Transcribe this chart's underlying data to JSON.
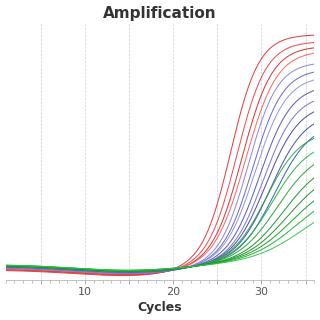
{
  "title": "Amplification",
  "xlabel": "Cycles",
  "xlim": [
    1,
    36
  ],
  "ylim": [
    -0.08,
    1.05
  ],
  "xticks_major": [
    5,
    10,
    15,
    20,
    25,
    30,
    35
  ],
  "xtick_labels": [
    "",
    "10",
    "",
    "20",
    "",
    "30",
    ""
  ],
  "background_color": "#ffffff",
  "plot_bg_color": "#ffffff",
  "grid_color": "#bbbbbb",
  "title_fontsize": 11,
  "xlabel_fontsize": 9,
  "curves": [
    {
      "color": "#e03030",
      "mid": 26.5,
      "k": 0.62,
      "ymax": 1.0,
      "ymin": -0.035
    },
    {
      "color": "#e84040",
      "mid": 27.2,
      "k": 0.6,
      "ymax": 0.97,
      "ymin": -0.032
    },
    {
      "color": "#d02828",
      "mid": 27.8,
      "k": 0.58,
      "ymax": 0.95,
      "ymin": -0.03
    },
    {
      "color": "#f06060",
      "mid": 28.2,
      "k": 0.56,
      "ymax": 0.93,
      "ymin": -0.028
    },
    {
      "color": "#8080e0",
      "mid": 28.5,
      "k": 0.6,
      "ymax": 0.88,
      "ymin": -0.025
    },
    {
      "color": "#6060cc",
      "mid": 29.0,
      "k": 0.58,
      "ymax": 0.85,
      "ymin": -0.023
    },
    {
      "color": "#9090dd",
      "mid": 29.3,
      "k": 0.56,
      "ymax": 0.82,
      "ymin": -0.022
    },
    {
      "color": "#5050bb",
      "mid": 29.8,
      "k": 0.55,
      "ymax": 0.78,
      "ymin": -0.02
    },
    {
      "color": "#7070cc",
      "mid": 30.2,
      "k": 0.54,
      "ymax": 0.74,
      "ymin": -0.019
    },
    {
      "color": "#4040aa",
      "mid": 30.5,
      "k": 0.52,
      "ymax": 0.7,
      "ymin": -0.018
    },
    {
      "color": "#3050a0",
      "mid": 31.0,
      "k": 0.5,
      "ymax": 0.66,
      "ymin": -0.016
    },
    {
      "color": "#2060a0",
      "mid": 31.5,
      "k": 0.48,
      "ymax": 0.62,
      "ymin": -0.015
    },
    {
      "color": "#30a040",
      "mid": 30.5,
      "k": 0.5,
      "ymax": 0.58,
      "ymin": -0.018
    },
    {
      "color": "#28b038",
      "mid": 31.2,
      "k": 0.46,
      "ymax": 0.54,
      "ymin": -0.016
    },
    {
      "color": "#20a030",
      "mid": 31.8,
      "k": 0.44,
      "ymax": 0.5,
      "ymin": -0.015
    },
    {
      "color": "#189028",
      "mid": 32.5,
      "k": 0.42,
      "ymax": 0.46,
      "ymin": -0.014
    },
    {
      "color": "#208828",
      "mid": 33.0,
      "k": 0.4,
      "ymax": 0.42,
      "ymin": -0.013
    },
    {
      "color": "#10a020",
      "mid": 33.5,
      "k": 0.38,
      "ymax": 0.38,
      "ymin": -0.012
    },
    {
      "color": "#18b030",
      "mid": 34.0,
      "k": 0.36,
      "ymax": 0.34,
      "ymin": -0.012
    },
    {
      "color": "#30c050",
      "mid": 34.8,
      "k": 0.34,
      "ymax": 0.3,
      "ymin": -0.011
    }
  ]
}
